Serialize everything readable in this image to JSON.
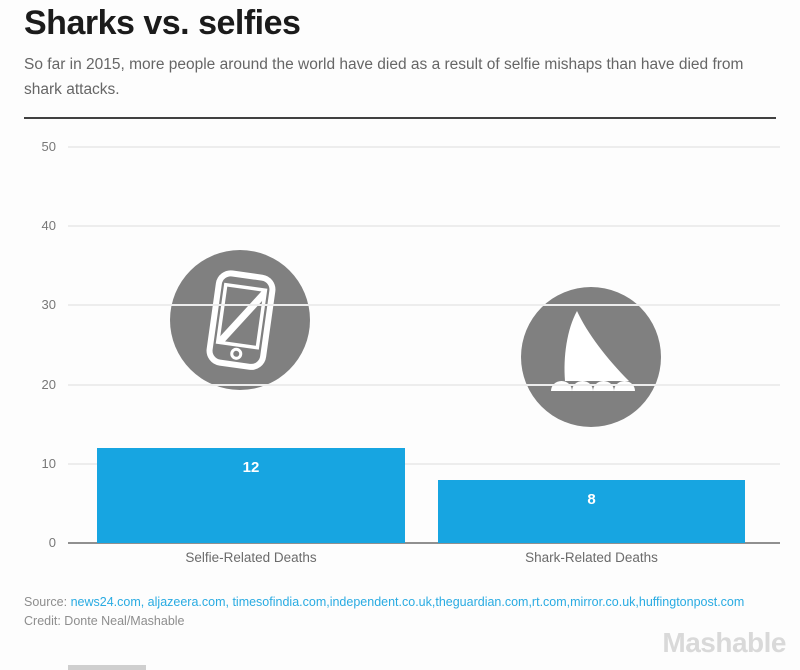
{
  "page": {
    "background": "#fdfdfd"
  },
  "header": {
    "title": "Sharks vs. selfies",
    "subtitle": "So far in 2015, more people around the world have died as a result of selfie mishaps than have died from shark attacks."
  },
  "chart_data": {
    "type": "bar",
    "categories": [
      "Selfie-Related Deaths",
      "Shark-Related Deaths"
    ],
    "values": [
      12,
      8
    ],
    "title": "Sharks vs. selfies",
    "xlabel": "",
    "ylabel": "",
    "ylim": [
      0,
      50
    ],
    "yticks": [
      0,
      10,
      20,
      30,
      40,
      50
    ],
    "grid": true,
    "legend_position": "none",
    "bar_color": "#17a5e1",
    "value_label_color": "#ffffff",
    "gridline_color": "#ededed",
    "axis_line_color": "#909090",
    "icons": [
      {
        "name": "smartphone-icon",
        "color": "#808080"
      },
      {
        "name": "shark-fin-icon",
        "color": "#808080"
      }
    ]
  },
  "footer": {
    "source_label": "Source:",
    "source_links": " news24.com, aljazeera.com, timesofindia.com,independent.co.uk,theguardian.com,rt.com,mirror.co.uk,huffingtonpost.com",
    "credit": "Credit: Donte Neal/Mashable",
    "brand": "Mashable"
  }
}
